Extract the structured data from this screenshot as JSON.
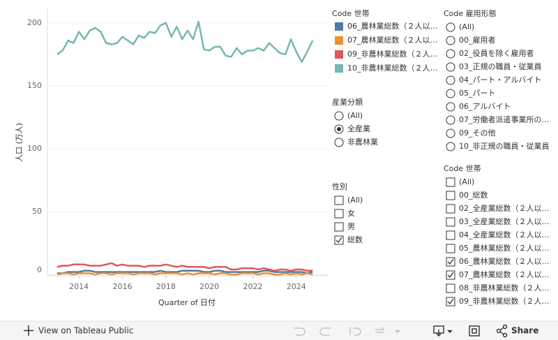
{
  "chart_data": {
    "type": "line",
    "y_label": "人口 (万人)",
    "x_label": "Quarter of 日付",
    "x": [
      2013,
      2013.25,
      2013.5,
      2013.75,
      2014,
      2014.25,
      2014.5,
      2014.75,
      2015,
      2015.25,
      2015.5,
      2015.75,
      2016,
      2016.25,
      2016.5,
      2016.75,
      2017,
      2017.25,
      2017.5,
      2017.75,
      2018,
      2018.25,
      2018.5,
      2018.75,
      2019,
      2019.25,
      2019.5,
      2019.75,
      2020,
      2020.25,
      2020.5,
      2020.75,
      2021,
      2021.25,
      2021.5,
      2021.75,
      2022,
      2022.25,
      2022.5,
      2022.75,
      2023,
      2023.25,
      2023.5,
      2023.75,
      2024,
      2024.25,
      2024.5,
      2024.75
    ],
    "xlim": [
      2012.55,
      2025.45
    ],
    "xticks": [
      2014,
      2016,
      2018,
      2020,
      2022,
      2024
    ],
    "ylim": [
      -1,
      211
    ],
    "yticks": [
      0,
      50,
      100,
      150,
      200
    ],
    "grid": true,
    "legend_title": "Code 世帯",
    "series": [
      {
        "name": "06_農林業総数（２人以…",
        "color": "#4e79a7",
        "values": [
          1,
          1,
          2,
          2,
          2,
          3,
          3,
          2,
          2,
          2,
          2,
          2,
          2,
          2,
          2,
          2,
          2,
          2,
          2,
          3,
          2,
          2,
          2,
          3,
          3,
          3,
          3,
          2,
          2,
          3,
          3,
          2,
          2,
          2,
          2,
          2,
          2,
          2,
          3,
          3,
          2,
          2,
          2,
          2,
          2,
          2,
          1,
          2
        ]
      },
      {
        "name": "07_農林業総数（２人以…",
        "color": "#f28e2b",
        "values": [
          0,
          1,
          1,
          0,
          1,
          1,
          1,
          0,
          1,
          1,
          0,
          1,
          1,
          1,
          0,
          1,
          1,
          1,
          0,
          1,
          1,
          1,
          1,
          0,
          1,
          0,
          1,
          1,
          1,
          0,
          1,
          1,
          0,
          0,
          1,
          1,
          1,
          0,
          1,
          1,
          0,
          0,
          1,
          0,
          1,
          0,
          1,
          0
        ]
      },
      {
        "name": "09_非農林業総数（２人…",
        "color": "#e15759",
        "values": [
          6,
          7,
          7,
          8,
          8,
          8,
          7,
          7,
          7,
          8,
          9,
          7,
          8,
          7,
          7,
          7,
          6,
          7,
          7,
          7,
          8,
          7,
          6,
          7,
          6,
          6,
          6,
          6,
          5,
          6,
          6,
          6,
          4,
          4,
          5,
          5,
          5,
          4,
          5,
          4,
          3,
          4,
          4,
          3,
          4,
          4,
          3,
          3
        ]
      },
      {
        "name": "10_非農林業総数（２人…",
        "color": "#76b7b2",
        "values": [
          175,
          178,
          186,
          184,
          193,
          187,
          194,
          196,
          193,
          184,
          183,
          184,
          189,
          186,
          183,
          190,
          188,
          193,
          192,
          198,
          200,
          189,
          197,
          187,
          194,
          187,
          201,
          179,
          178,
          181,
          181,
          174,
          173,
          180,
          175,
          178,
          178,
          180,
          178,
          184,
          180,
          176,
          175,
          187,
          177,
          169,
          177,
          186
        ]
      }
    ]
  },
  "filters": [
    {
      "title": "産業分類",
      "kind": "radio",
      "options": [
        "(All)",
        "全産業",
        "非農林業"
      ],
      "selected": [
        1
      ]
    },
    {
      "title": "性別",
      "kind": "check",
      "options": [
        "(All)",
        "女",
        "男",
        "総数"
      ],
      "selected": [
        3
      ]
    },
    {
      "title": "Code 雇用形態",
      "kind": "radio",
      "options": [
        "(All)",
        "00_雇用者",
        "02_役員を除く雇用者",
        "03_正規の職員・従業員",
        "04_パート・アルバイト",
        "05_パート",
        "06_アルバイト",
        "07_労働者派遣事業所の…",
        "09_その他",
        "10_非正規の職員・従業員"
      ],
      "selected": []
    },
    {
      "title": "Code 世帯",
      "kind": "check",
      "options": [
        "(All)",
        "00_総数",
        "02_全産業総数（２人以…",
        "03_全産業総数（２人以…",
        "04_全産業総数（２人以…",
        "05_農林業総数（２人以…",
        "06_農林業総数（２人以…",
        "07_農林業総数（２人以…",
        "08_非農林業総数（２人…",
        "09_非農林業総数（２人…"
      ],
      "selected": [
        6,
        7,
        9
      ]
    }
  ],
  "toolbar": {
    "view": "View on Tableau Public",
    "share": "Share"
  }
}
